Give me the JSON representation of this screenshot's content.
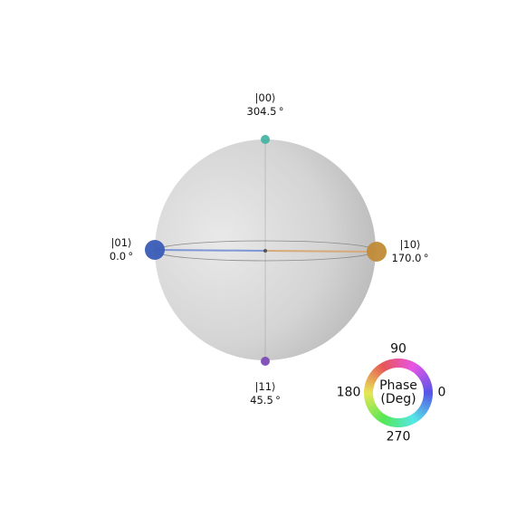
{
  "states": [
    {
      "ket": "|00⟩",
      "phase": "304.5$^\\circ$",
      "phase_text": "304.5 °",
      "color": "#3fb1a0"
    },
    {
      "ket": "|01⟩",
      "phase_text": "0.0 °",
      "color": "#3a5cb8"
    },
    {
      "ket": "|10⟩",
      "phase_text": "170.0 °",
      "color": "#c08b37"
    },
    {
      "ket": "|11⟩",
      "phase_text": "45.5 °",
      "color": "#7d4bb7"
    }
  ],
  "wheel": {
    "title_line1": "Phase",
    "title_line2": "(Deg)",
    "tick_90": "90",
    "tick_180": "180",
    "tick_0": "0",
    "tick_270": "270"
  },
  "colors": {
    "sphere_light": "#e6e6e6",
    "sphere_dark": "#b3b3b3",
    "equator": "#8a8a8a",
    "line_01": "#7f96d6",
    "line_10": "#d6aa79"
  }
}
